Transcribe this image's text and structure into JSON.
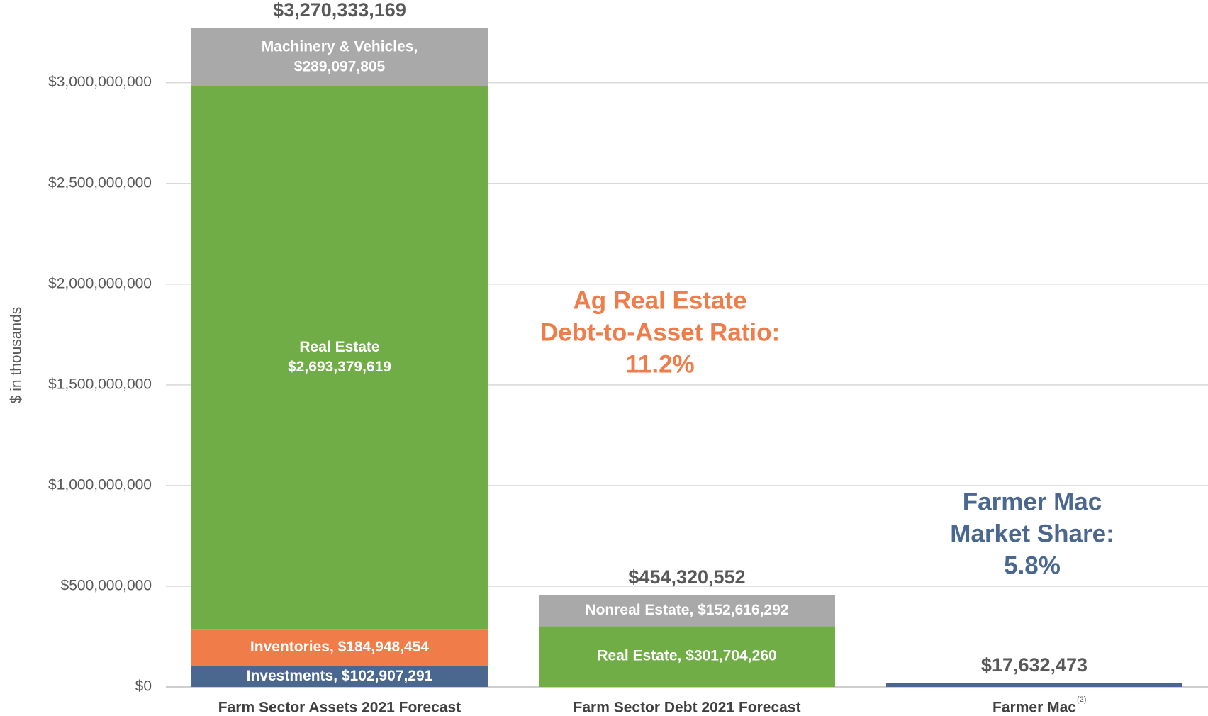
{
  "chart_data": {
    "type": "stacked-bar",
    "y_label": "$ in thousands",
    "ylim": [
      0,
      3400000000
    ],
    "yticks": [
      {
        "value": 0,
        "label": "$0"
      },
      {
        "value": 500000000,
        "label": "$500,000,000"
      },
      {
        "value": 1000000000,
        "label": "$1,000,000,000"
      },
      {
        "value": 1500000000,
        "label": "$1,500,000,000"
      },
      {
        "value": 2000000000,
        "label": "$2,000,000,000"
      },
      {
        "value": 2500000000,
        "label": "$2,500,000,000"
      },
      {
        "value": 3000000000,
        "label": "$3,000,000,000"
      }
    ],
    "grid": true,
    "bars": [
      {
        "category": "Farm Sector Assets 2021 Forecast",
        "total": 3270333169,
        "total_label": "$3,270,333,169",
        "segments": [
          {
            "value": 102907291,
            "color": "#4a6790",
            "label_lines": [
              "Investments, $102,907,291"
            ]
          },
          {
            "value": 184948454,
            "color": "#f07c4a",
            "label_lines": [
              "Inventories, $184,948,454"
            ]
          },
          {
            "value": 2693379619,
            "color": "#70ad47",
            "label_lines": [
              "Real Estate",
              "$2,693,379,619"
            ]
          },
          {
            "value": 289097805,
            "color": "#a9a9a9",
            "label_lines": [
              "Machinery & Vehicles,",
              "$289,097,805"
            ]
          }
        ]
      },
      {
        "category": "Farm Sector Debt 2021 Forecast",
        "total": 454320552,
        "total_label": "$454,320,552",
        "segments": [
          {
            "value": 301704260,
            "color": "#70ad47",
            "label_lines": [
              "Real Estate, $301,704,260"
            ]
          },
          {
            "value": 152616292,
            "color": "#a9a9a9",
            "label_lines": [
              "Nonreal Estate, $152,616,292"
            ]
          }
        ]
      },
      {
        "category": "Farmer Mac",
        "category_note": "(2)",
        "total": 17632473,
        "total_label": "$17,632,473",
        "segments": [
          {
            "value": 17632473,
            "color": "#4a6790"
          }
        ]
      }
    ],
    "annotations": [
      {
        "lines": [
          "Ag Real Estate",
          "Debt-to-Asset Ratio:",
          "11.2%"
        ],
        "color": "#f07c4a"
      },
      {
        "lines": [
          "Farmer Mac",
          "Market Share:",
          "5.8%"
        ],
        "color": "#4a6790"
      }
    ]
  }
}
